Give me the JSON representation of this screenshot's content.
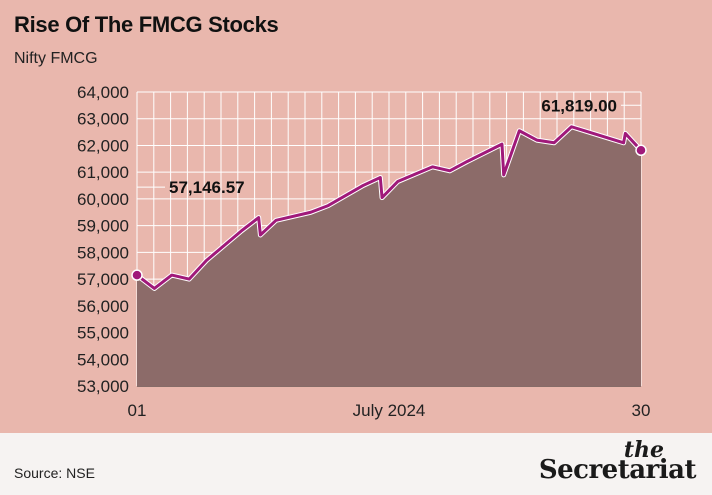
{
  "header": {
    "title": "Rise Of The FMCG Stocks",
    "subtitle": "Nifty FMCG"
  },
  "footer": {
    "source": "Source: NSE",
    "logo_the": "the",
    "logo_main": "Secretariat"
  },
  "colors": {
    "line": "#a0197a",
    "area": "#8c6b69",
    "grid": "#ffffff",
    "background": "#e9b7ad",
    "footer_bg": "#f6f3f2"
  },
  "chart_data": {
    "type": "area",
    "title": "Rise Of The FMCG Stocks",
    "subtitle": "Nifty FMCG",
    "xlabel": "",
    "ylabel": "",
    "ylim": [
      53000,
      64000
    ],
    "yticks": [
      53000,
      54000,
      55000,
      56000,
      57000,
      58000,
      59000,
      60000,
      61000,
      62000,
      63000,
      64000
    ],
    "ytick_labels": [
      "53,000",
      "54,000",
      "55,000",
      "56,000",
      "57,000",
      "58,000",
      "59,000",
      "60,000",
      "61,000",
      "62,000",
      "63,000",
      "64,000"
    ],
    "xlim": [
      1,
      30
    ],
    "xtick_labels": [
      {
        "x": 1,
        "label": "01"
      },
      {
        "x": 15.5,
        "label": "July 2024"
      },
      {
        "x": 30,
        "label": "30"
      }
    ],
    "grid": true,
    "series": [
      {
        "values": [
          {
            "x": 1,
            "y": 57146.57
          },
          {
            "x": 2,
            "y": 56650
          },
          {
            "x": 3,
            "y": 57150
          },
          {
            "x": 4,
            "y": 57000
          },
          {
            "x": 5,
            "y": 57700
          },
          {
            "x": 7,
            "y": 58800
          },
          {
            "x": 8,
            "y": 59300
          },
          {
            "x": 8.1,
            "y": 58650
          },
          {
            "x": 9,
            "y": 59200
          },
          {
            "x": 11,
            "y": 59500
          },
          {
            "x": 12,
            "y": 59750
          },
          {
            "x": 14,
            "y": 60500
          },
          {
            "x": 15,
            "y": 60800
          },
          {
            "x": 15.1,
            "y": 60050
          },
          {
            "x": 16,
            "y": 60650
          },
          {
            "x": 18,
            "y": 61200
          },
          {
            "x": 19,
            "y": 61050
          },
          {
            "x": 20,
            "y": 61400
          },
          {
            "x": 22,
            "y": 62050
          },
          {
            "x": 22.1,
            "y": 60900
          },
          {
            "x": 23,
            "y": 62550
          },
          {
            "x": 24,
            "y": 62200
          },
          {
            "x": 25,
            "y": 62100
          },
          {
            "x": 26,
            "y": 62700
          },
          {
            "x": 28,
            "y": 62300
          },
          {
            "x": 29,
            "y": 62100
          },
          {
            "x": 29.1,
            "y": 62450
          },
          {
            "x": 30,
            "y": 61819.0
          }
        ]
      }
    ],
    "annotations": [
      {
        "x": 1,
        "y": 57146.57,
        "label": "57,146.57"
      },
      {
        "x": 30,
        "y": 61819.0,
        "label": "61,819.00"
      }
    ]
  }
}
